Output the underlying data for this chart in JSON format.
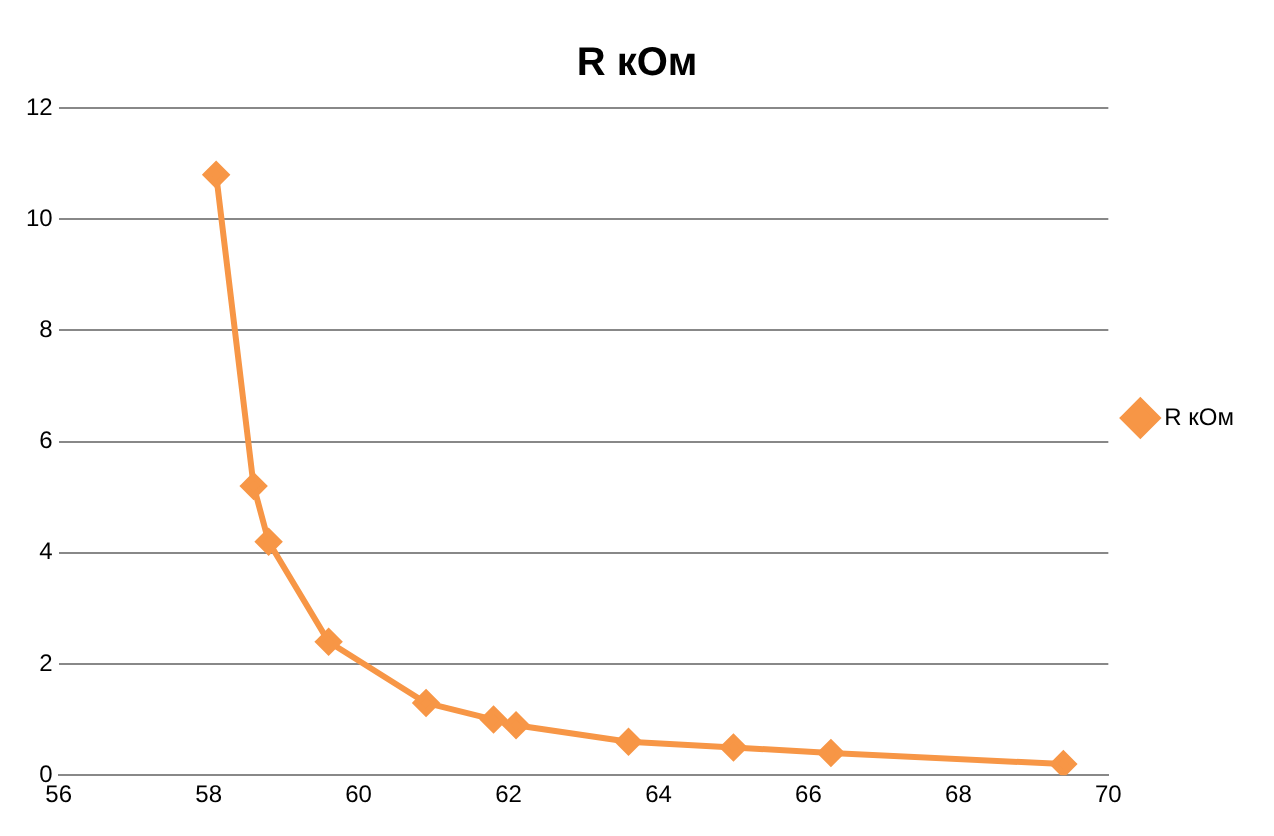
{
  "chart_data": {
    "type": "line",
    "title": "R кОм",
    "x": [
      69.4,
      66.3,
      65,
      63.6,
      62.1,
      61.8,
      60.9,
      59.6,
      58.8,
      58.6,
      58.1
    ],
    "series": [
      {
        "name": "R кОм",
        "color": "#f79646",
        "values": [
          0.2,
          0.4,
          0.5,
          0.6,
          0.9,
          1,
          1.3,
          2.4,
          4.2,
          5.2,
          10.8
        ]
      }
    ],
    "xlim": [
      56,
      70
    ],
    "xticks": [
      56,
      58,
      60,
      62,
      64,
      66,
      68,
      70
    ],
    "ylim": [
      0,
      12
    ],
    "yticks": [
      0,
      2,
      4,
      6,
      8,
      10,
      12
    ],
    "grid": "y",
    "legend": "right",
    "marker": "diamond",
    "line_style": "solid"
  }
}
